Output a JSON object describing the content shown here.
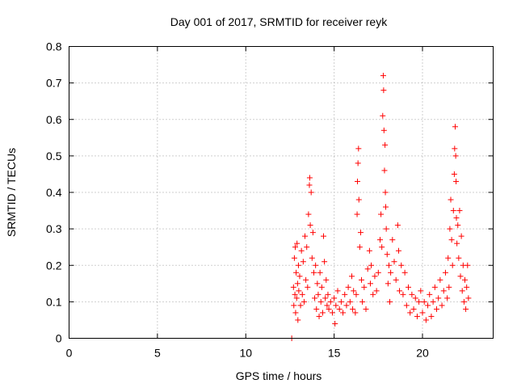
{
  "chart_data": {
    "type": "scatter",
    "title": "Day 001 of 2017, SRMTID for receiver reyk",
    "xlabel": "GPS time / hours",
    "ylabel": "SRMTID / TECUs",
    "xlim": [
      0,
      24
    ],
    "ylim": [
      0,
      0.8
    ],
    "xticks": [
      0,
      5,
      10,
      15,
      20
    ],
    "yticks": [
      0,
      0.1,
      0.2,
      0.3,
      0.4,
      0.5,
      0.6,
      0.7,
      0.8
    ],
    "xtick_labels": [
      "0",
      "5",
      "10",
      "15",
      "20"
    ],
    "ytick_labels": [
      "0",
      "0.1",
      "0.2",
      "0.3",
      "0.4",
      "0.5",
      "0.6",
      "0.7",
      "0.8"
    ],
    "grid": true,
    "marker": "+",
    "color": "#ff0000",
    "series": [
      {
        "name": "SRMTID",
        "points": [
          [
            12.6,
            0.0
          ],
          [
            12.7,
            0.14
          ],
          [
            12.72,
            0.09
          ],
          [
            12.75,
            0.22
          ],
          [
            12.78,
            0.12
          ],
          [
            12.8,
            0.25
          ],
          [
            12.82,
            0.07
          ],
          [
            12.85,
            0.18
          ],
          [
            12.88,
            0.11
          ],
          [
            12.9,
            0.26
          ],
          [
            12.93,
            0.15
          ],
          [
            12.95,
            0.05
          ],
          [
            12.98,
            0.2
          ],
          [
            13.0,
            0.13
          ],
          [
            13.05,
            0.17
          ],
          [
            13.1,
            0.09
          ],
          [
            13.15,
            0.24
          ],
          [
            13.2,
            0.12
          ],
          [
            13.25,
            0.21
          ],
          [
            13.3,
            0.1
          ],
          [
            13.35,
            0.28
          ],
          [
            13.4,
            0.16
          ],
          [
            13.45,
            0.25
          ],
          [
            13.5,
            0.14
          ],
          [
            13.55,
            0.34
          ],
          [
            13.6,
            0.42
          ],
          [
            13.62,
            0.44
          ],
          [
            13.65,
            0.31
          ],
          [
            13.7,
            0.4
          ],
          [
            13.75,
            0.22
          ],
          [
            13.8,
            0.29
          ],
          [
            13.85,
            0.18
          ],
          [
            13.9,
            0.11
          ],
          [
            13.95,
            0.2
          ],
          [
            14.0,
            0.08
          ],
          [
            14.05,
            0.15
          ],
          [
            14.1,
            0.12
          ],
          [
            14.15,
            0.06
          ],
          [
            14.2,
            0.18
          ],
          [
            14.25,
            0.1
          ],
          [
            14.3,
            0.14
          ],
          [
            14.35,
            0.07
          ],
          [
            14.4,
            0.28
          ],
          [
            14.45,
            0.21
          ],
          [
            14.5,
            0.11
          ],
          [
            14.55,
            0.16
          ],
          [
            14.6,
            0.09
          ],
          [
            14.65,
            0.12
          ],
          [
            14.7,
            0.08
          ],
          [
            14.8,
            0.1
          ],
          [
            14.9,
            0.07
          ],
          [
            15.0,
            0.11
          ],
          [
            15.05,
            0.04
          ],
          [
            15.1,
            0.09
          ],
          [
            15.2,
            0.13
          ],
          [
            15.3,
            0.08
          ],
          [
            15.4,
            0.1
          ],
          [
            15.5,
            0.07
          ],
          [
            15.6,
            0.12
          ],
          [
            15.7,
            0.09
          ],
          [
            15.8,
            0.14
          ],
          [
            15.9,
            0.1
          ],
          [
            16.0,
            0.17
          ],
          [
            16.05,
            0.08
          ],
          [
            16.1,
            0.13
          ],
          [
            16.2,
            0.07
          ],
          [
            16.25,
            0.12
          ],
          [
            16.3,
            0.34
          ],
          [
            16.32,
            0.43
          ],
          [
            16.35,
            0.48
          ],
          [
            16.38,
            0.52
          ],
          [
            16.4,
            0.38
          ],
          [
            16.45,
            0.25
          ],
          [
            16.5,
            0.29
          ],
          [
            16.55,
            0.16
          ],
          [
            16.6,
            0.1
          ],
          [
            16.7,
            0.14
          ],
          [
            16.8,
            0.08
          ],
          [
            16.9,
            0.19
          ],
          [
            17.0,
            0.24
          ],
          [
            17.05,
            0.15
          ],
          [
            17.1,
            0.2
          ],
          [
            17.2,
            0.12
          ],
          [
            17.3,
            0.17
          ],
          [
            17.4,
            0.13
          ],
          [
            17.5,
            0.18
          ],
          [
            17.6,
            0.27
          ],
          [
            17.65,
            0.34
          ],
          [
            17.7,
            0.25
          ],
          [
            17.75,
            0.61
          ],
          [
            17.78,
            0.72
          ],
          [
            17.8,
            0.68
          ],
          [
            17.82,
            0.57
          ],
          [
            17.85,
            0.46
          ],
          [
            17.88,
            0.53
          ],
          [
            17.9,
            0.4
          ],
          [
            17.92,
            0.36
          ],
          [
            17.95,
            0.3
          ],
          [
            18.0,
            0.23
          ],
          [
            18.05,
            0.15
          ],
          [
            18.1,
            0.2
          ],
          [
            18.15,
            0.1
          ],
          [
            18.2,
            0.18
          ],
          [
            18.3,
            0.27
          ],
          [
            18.4,
            0.21
          ],
          [
            18.5,
            0.16
          ],
          [
            18.6,
            0.31
          ],
          [
            18.65,
            0.24
          ],
          [
            18.7,
            0.13
          ],
          [
            18.8,
            0.2
          ],
          [
            18.9,
            0.12
          ],
          [
            19.0,
            0.18
          ],
          [
            19.1,
            0.09
          ],
          [
            19.2,
            0.14
          ],
          [
            19.3,
            0.07
          ],
          [
            19.4,
            0.12
          ],
          [
            19.5,
            0.08
          ],
          [
            19.6,
            0.11
          ],
          [
            19.7,
            0.06
          ],
          [
            19.8,
            0.1
          ],
          [
            19.9,
            0.13
          ],
          [
            20.0,
            0.07
          ],
          [
            20.1,
            0.1
          ],
          [
            20.2,
            0.05
          ],
          [
            20.3,
            0.09
          ],
          [
            20.4,
            0.12
          ],
          [
            20.5,
            0.06
          ],
          [
            20.6,
            0.1
          ],
          [
            20.7,
            0.14
          ],
          [
            20.8,
            0.08
          ],
          [
            20.9,
            0.11
          ],
          [
            21.0,
            0.16
          ],
          [
            21.1,
            0.09
          ],
          [
            21.2,
            0.13
          ],
          [
            21.3,
            0.18
          ],
          [
            21.4,
            0.11
          ],
          [
            21.45,
            0.22
          ],
          [
            21.5,
            0.14
          ],
          [
            21.55,
            0.3
          ],
          [
            21.6,
            0.38
          ],
          [
            21.65,
            0.27
          ],
          [
            21.7,
            0.2
          ],
          [
            21.75,
            0.35
          ],
          [
            21.8,
            0.45
          ],
          [
            21.82,
            0.52
          ],
          [
            21.85,
            0.58
          ],
          [
            21.88,
            0.5
          ],
          [
            21.9,
            0.43
          ],
          [
            21.92,
            0.33
          ],
          [
            21.95,
            0.26
          ],
          [
            22.0,
            0.31
          ],
          [
            22.05,
            0.22
          ],
          [
            22.1,
            0.35
          ],
          [
            22.15,
            0.17
          ],
          [
            22.2,
            0.28
          ],
          [
            22.25,
            0.13
          ],
          [
            22.3,
            0.2
          ],
          [
            22.35,
            0.1
          ],
          [
            22.4,
            0.16
          ],
          [
            22.45,
            0.08
          ],
          [
            22.5,
            0.14
          ],
          [
            22.55,
            0.2
          ],
          [
            22.6,
            0.11
          ]
        ]
      }
    ]
  }
}
